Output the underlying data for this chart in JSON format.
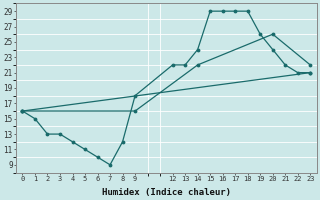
{
  "xlabel": "Humidex (Indice chaleur)",
  "bg_color": "#cce8e8",
  "line_color": "#1a6b6b",
  "grid_color": "#ffffff",
  "xlim": [
    0,
    23
  ],
  "ylim": [
    8,
    30
  ],
  "xticks": [
    0,
    1,
    2,
    3,
    4,
    5,
    6,
    7,
    8,
    9,
    12,
    13,
    14,
    15,
    16,
    17,
    18,
    19,
    20,
    21,
    22,
    23
  ],
  "yticks": [
    9,
    11,
    13,
    15,
    17,
    19,
    21,
    23,
    25,
    27,
    29
  ],
  "series": [
    {
      "x": [
        0,
        1,
        2,
        3,
        4,
        5,
        6,
        7,
        8,
        9,
        12,
        13,
        14,
        15,
        16,
        17,
        18,
        19,
        20,
        21,
        22,
        23
      ],
      "y": [
        16,
        15,
        13,
        13,
        12,
        11,
        10,
        9,
        12,
        18,
        22,
        22,
        24,
        29,
        29,
        29,
        29,
        26,
        24,
        22,
        21,
        21
      ]
    },
    {
      "x": [
        0,
        23
      ],
      "y": [
        16,
        21
      ]
    },
    {
      "x": [
        0,
        9,
        14,
        20,
        23
      ],
      "y": [
        16,
        16,
        22,
        26,
        22
      ]
    }
  ]
}
